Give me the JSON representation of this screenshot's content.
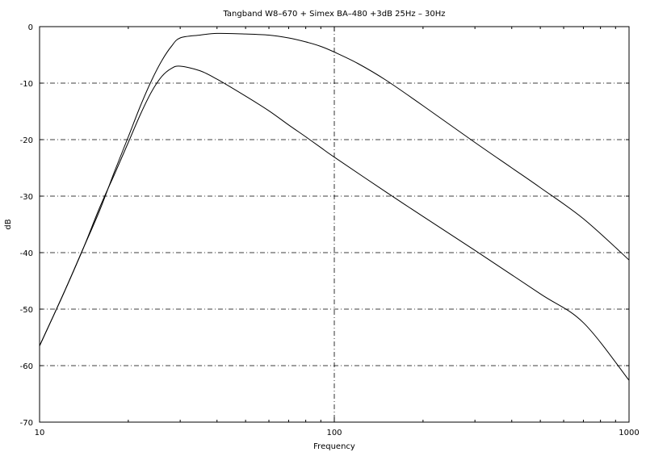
{
  "chart_data": {
    "type": "line",
    "title": "Tangband W8–670 + Simex BA–480 +3dB 25Hz – 30Hz",
    "xlabel": "Frequency",
    "ylabel": "dB",
    "xscale": "log",
    "xlim": [
      10,
      1000
    ],
    "ylim": [
      -70,
      0
    ],
    "xticks": [
      10,
      100,
      1000
    ],
    "xtick_labels": [
      "10",
      "100",
      "1000"
    ],
    "yticks": [
      0,
      -10,
      -20,
      -30,
      -40,
      -50,
      -60,
      -70
    ],
    "ytick_labels": [
      "0",
      "-10",
      "-20",
      "-30",
      "-40",
      "-50",
      "-60",
      "-70"
    ],
    "grid": true,
    "series": [
      {
        "x": [
          10,
          12,
          14,
          16,
          18,
          20,
          22,
          24,
          26,
          28,
          30,
          35,
          40,
          50,
          60,
          70,
          80,
          90,
          100,
          120,
          150,
          200,
          300,
          400,
          500,
          700,
          1000
        ],
        "y": [
          -56.5,
          -47.5,
          -39.5,
          -32.5,
          -25.5,
          -19.5,
          -14,
          -9.5,
          -6,
          -3.5,
          -2,
          -1.5,
          -1.2,
          -1.3,
          -1.5,
          -2,
          -2.7,
          -3.5,
          -4.5,
          -6.5,
          -9.5,
          -14,
          -20.5,
          -25,
          -28.5,
          -34,
          -41.3
        ]
      },
      {
        "x": [
          10,
          12,
          14,
          16,
          18,
          20,
          22,
          24,
          26,
          28,
          30,
          35,
          40,
          50,
          60,
          70,
          80,
          90,
          100,
          150,
          200,
          300,
          500,
          700,
          1000
        ],
        "y": [
          -56.5,
          -47.5,
          -39.5,
          -32,
          -26,
          -20.5,
          -15.5,
          -11.5,
          -8.8,
          -7.4,
          -7.0,
          -7.8,
          -9.3,
          -12.3,
          -14.9,
          -17.4,
          -19.5,
          -21.4,
          -23.1,
          -29.3,
          -33.6,
          -39.6,
          -47.3,
          -52.4,
          -62.6
        ]
      }
    ]
  }
}
